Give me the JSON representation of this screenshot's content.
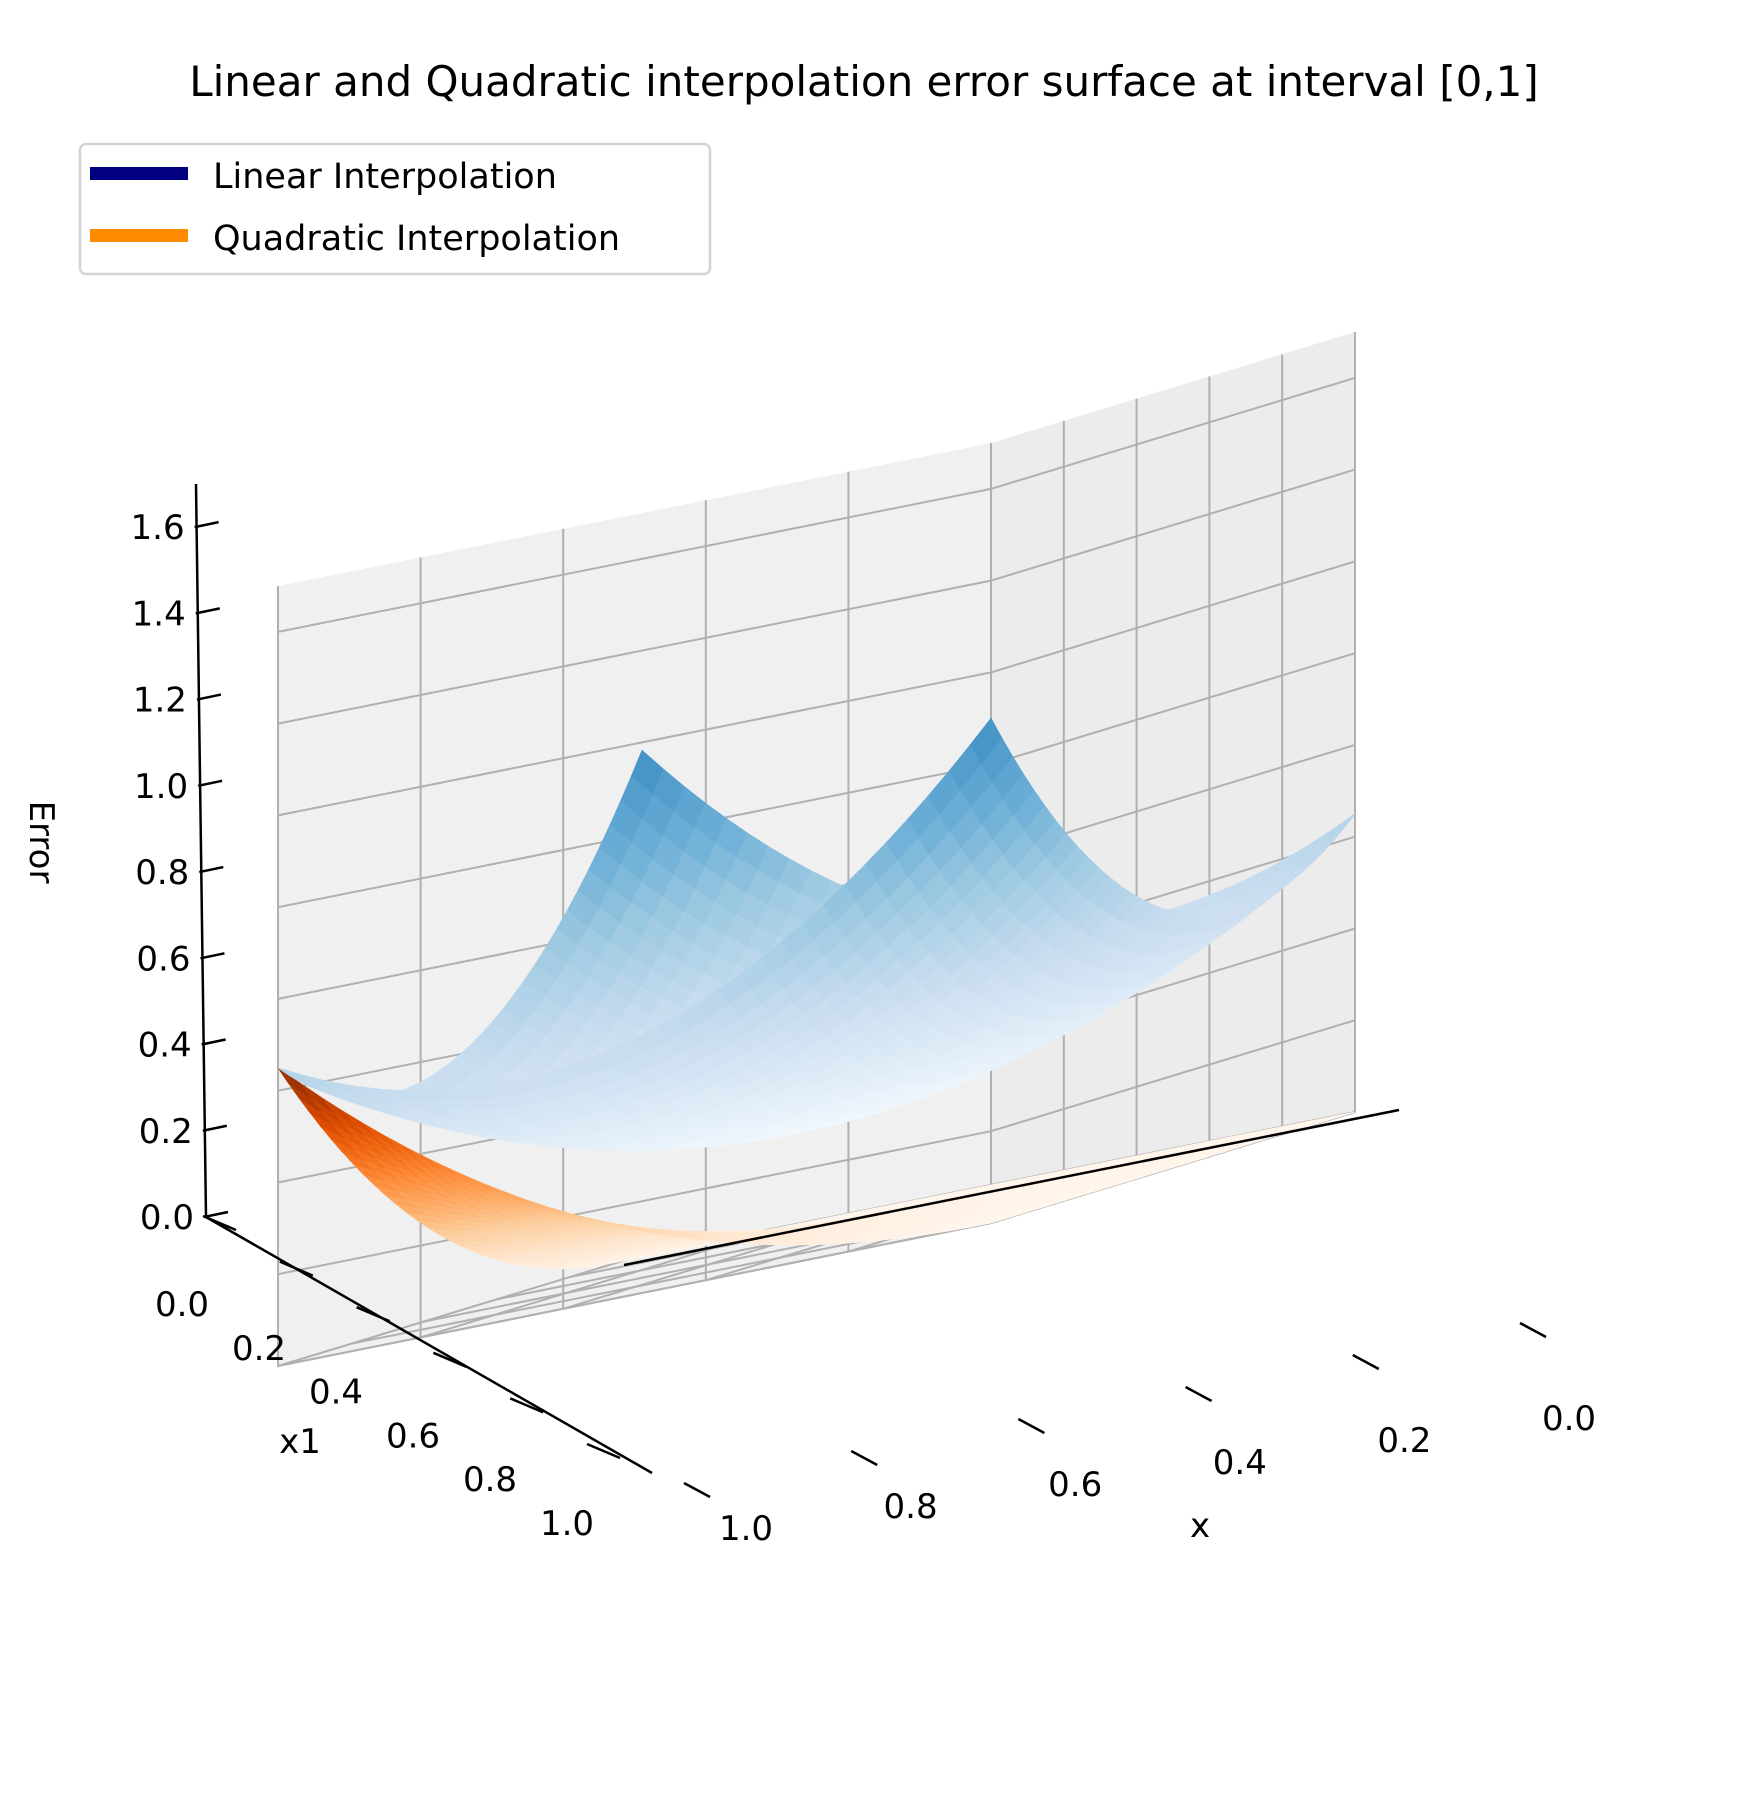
{
  "chart_data": {
    "type": "surface",
    "title": "Linear and Quadratic interpolation error surface at interval [0,1]",
    "xlabel": "x",
    "ylabel": "x1",
    "zlabel": "Error",
    "xlim": [
      0,
      1
    ],
    "ylim": [
      0,
      1
    ],
    "zlim": [
      0,
      1.7
    ],
    "x_ticks": [
      "0.0",
      "0.2",
      "0.4",
      "0.6",
      "0.8",
      "1.0"
    ],
    "y_ticks": [
      "0.0",
      "0.2",
      "0.4",
      "0.6",
      "0.8",
      "1.0"
    ],
    "z_ticks": [
      "0.0",
      "0.2",
      "0.4",
      "0.6",
      "0.8",
      "1.0",
      "1.2",
      "1.4",
      "1.6"
    ],
    "grid": true,
    "legend_position": "top-left",
    "series": [
      {
        "name": "Linear Interpolation",
        "legend_color": "#000080",
        "colormap": "Blues",
        "corner_values": {
          "x0_y0": 0.65,
          "x1_y0": 1.55,
          "x0_y1": 1.55,
          "x1_y1": 0.65
        },
        "center_value": 0.24
      },
      {
        "name": "Quadratic Interpolation",
        "legend_color": "#ff8c00",
        "colormap": "Oranges",
        "corner_values": {
          "x0_y0": 0.0,
          "x1_y0": 0.0,
          "x0_y1": 0.0,
          "x1_y1": 0.65
        },
        "center_value": 0.0
      }
    ]
  }
}
